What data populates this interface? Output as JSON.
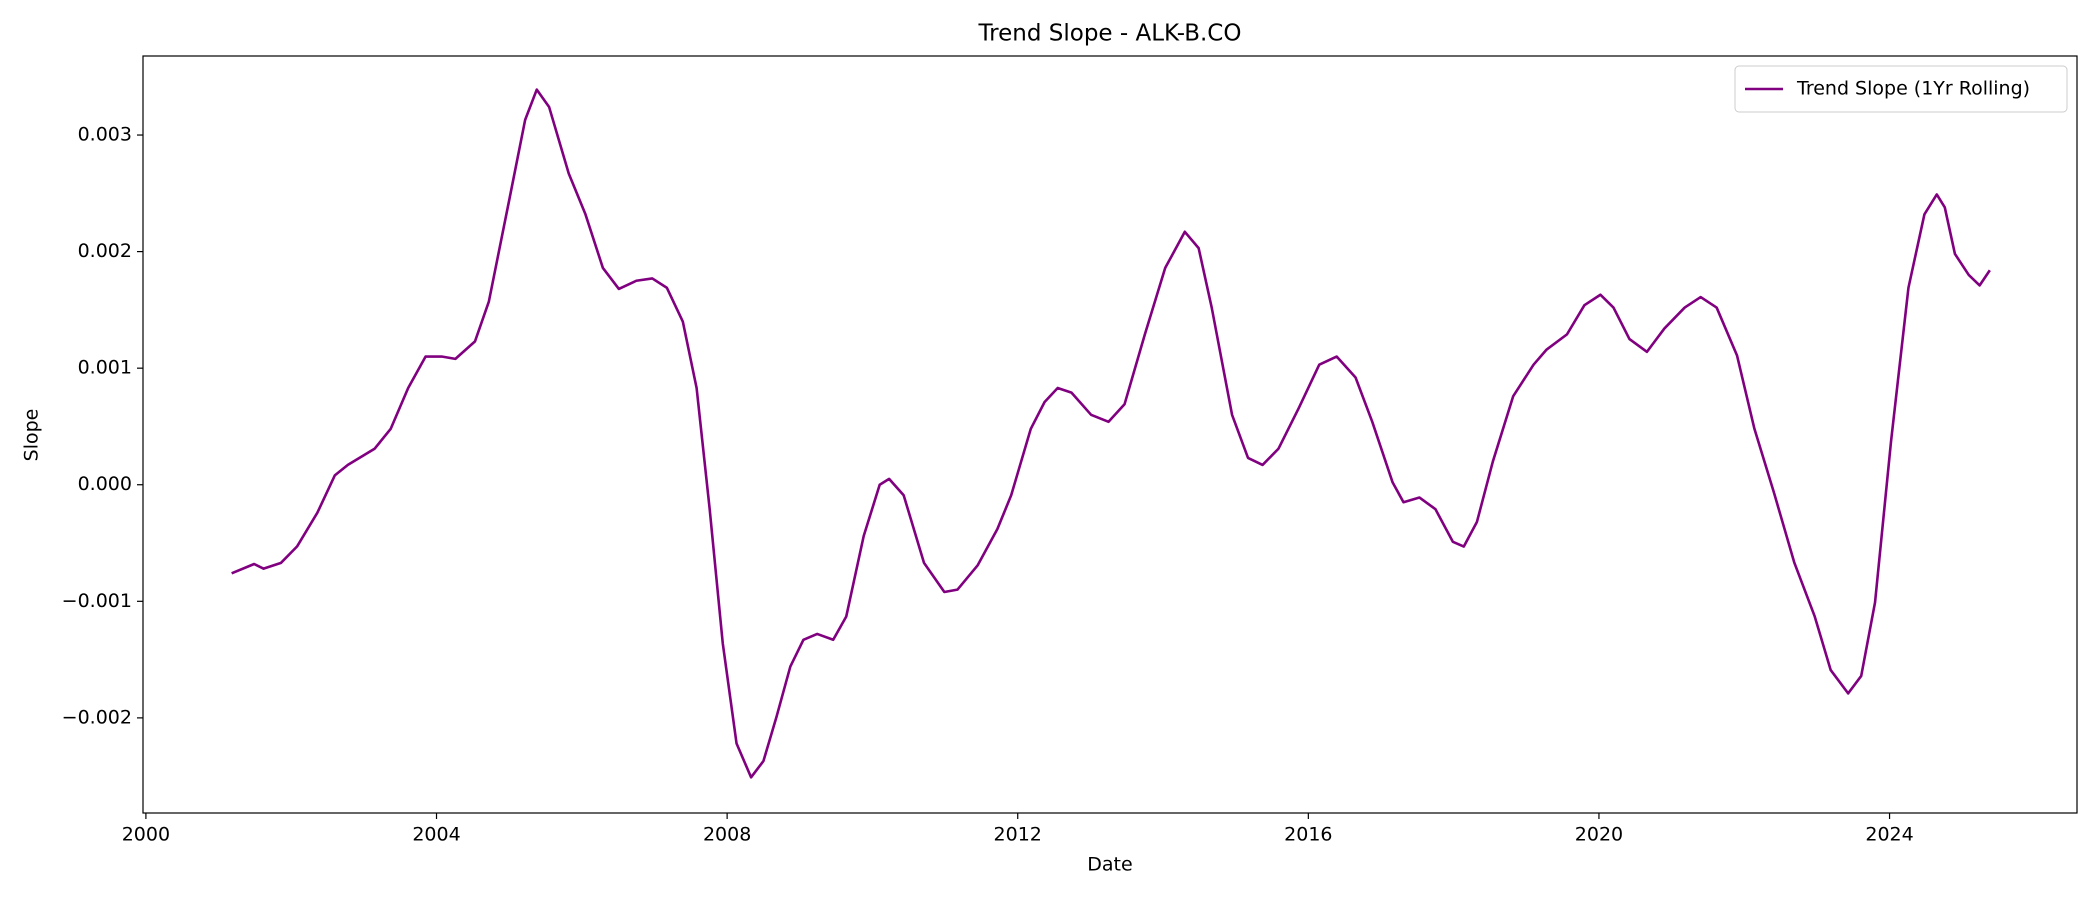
{
  "chart_data": {
    "type": "line",
    "title": "Trend Slope - ALK-B.CO",
    "x_label": "Date",
    "y_label": "Slope",
    "legend": "upper right",
    "grid": false,
    "xlim": [
      1999.96,
      2026.58
    ],
    "xticks": [
      2000,
      2004,
      2008,
      2012,
      2016,
      2020,
      2024
    ],
    "ylim": [
      -0.002816,
      0.003678
    ],
    "yticks": [
      {
        "value": -0.002,
        "label": "−0.002"
      },
      {
        "value": -0.001,
        "label": "−0.001"
      },
      {
        "value": 0,
        "label": "0.000"
      },
      0.001,
      0.002,
      0.003
    ],
    "x": [
      2001.18,
      2001.49,
      2001.62,
      2001.86,
      2002.08,
      2002.36,
      2002.6,
      2002.78,
      2003.15,
      2003.37,
      2003.61,
      2003.85,
      2004.07,
      2004.26,
      2004.53,
      2004.72,
      2005.0,
      2005.22,
      2005.38,
      2005.55,
      2005.82,
      2006.05,
      2006.29,
      2006.51,
      2006.75,
      2006.97,
      2007.17,
      2007.39,
      2007.58,
      2007.76,
      2007.94,
      2008.13,
      2008.33,
      2008.5,
      2008.68,
      2008.87,
      2009.05,
      2009.24,
      2009.46,
      2009.64,
      2009.88,
      2010.1,
      2010.23,
      2010.43,
      2010.71,
      2010.99,
      2011.17,
      2011.45,
      2011.72,
      2011.91,
      2012.18,
      2012.37,
      2012.55,
      2012.74,
      2013.01,
      2013.25,
      2013.47,
      2013.75,
      2014.03,
      2014.3,
      2014.49,
      2014.67,
      2014.95,
      2015.17,
      2015.37,
      2015.59,
      2015.87,
      2016.15,
      2016.39,
      2016.65,
      2016.88,
      2017.16,
      2017.31,
      2017.53,
      2017.75,
      2017.99,
      2018.14,
      2018.32,
      2018.54,
      2018.82,
      2019.1,
      2019.28,
      2019.56,
      2019.8,
      2020.02,
      2020.2,
      2020.42,
      2020.66,
      2020.9,
      2021.18,
      2021.4,
      2021.62,
      2021.9,
      2022.14,
      2022.41,
      2022.69,
      2022.97,
      2023.19,
      2023.43,
      2023.61,
      2023.8,
      2024.02,
      2024.26,
      2024.48,
      2024.65,
      2024.76,
      2024.9,
      2025.09,
      2025.24,
      2025.38
    ],
    "series": [
      {
        "name": "Trend Slope (1Yr Rolling)",
        "color": "#800080",
        "values": [
          -0.00076,
          -0.00068,
          -0.00072,
          -0.00067,
          -0.00053,
          -0.00024,
          8e-05,
          0.00017,
          0.00031,
          0.00048,
          0.00083,
          0.0011,
          0.0011,
          0.00108,
          0.00123,
          0.00157,
          0.00244,
          0.00313,
          0.00339,
          0.00324,
          0.00267,
          0.00232,
          0.00186,
          0.00168,
          0.00175,
          0.00177,
          0.00169,
          0.0014,
          0.00083,
          -0.00021,
          -0.00136,
          -0.00222,
          -0.00251,
          -0.00237,
          -0.00199,
          -0.00156,
          -0.00133,
          -0.00128,
          -0.00133,
          -0.00113,
          -0.00044,
          0.0,
          5e-05,
          -9e-05,
          -0.00067,
          -0.00092,
          -0.0009,
          -0.00069,
          -0.00038,
          -9e-05,
          0.00048,
          0.00071,
          0.00083,
          0.00079,
          0.0006,
          0.00054,
          0.00069,
          0.00129,
          0.00186,
          0.00217,
          0.00203,
          0.00152,
          0.0006,
          0.00023,
          0.00017,
          0.00031,
          0.00066,
          0.00103,
          0.0011,
          0.00092,
          0.00054,
          2e-05,
          -0.00015,
          -0.00011,
          -0.00021,
          -0.00049,
          -0.00053,
          -0.00032,
          0.0002,
          0.00076,
          0.00103,
          0.00116,
          0.00129,
          0.00154,
          0.00163,
          0.00152,
          0.00125,
          0.00114,
          0.00134,
          0.00152,
          0.00161,
          0.00152,
          0.00111,
          0.00048,
          -7e-05,
          -0.00067,
          -0.00113,
          -0.00159,
          -0.00179,
          -0.00164,
          -0.00101,
          0.00037,
          0.00169,
          0.00232,
          0.00249,
          0.00238,
          0.00198,
          0.0018,
          0.00171,
          0.00184
        ]
      }
    ]
  }
}
